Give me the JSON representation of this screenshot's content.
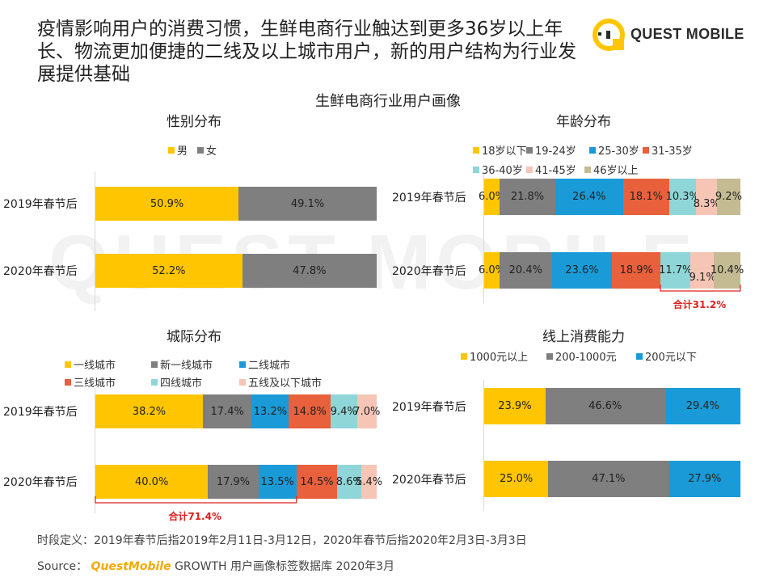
{
  "headline": "疫情影响用户的消费习惯，生鲜电商行业触达到更多36岁以上年长、物流更加便捷的二线及以上城市用户，新的用户结构为行业发展提供基础",
  "brand": "QUEST MOBILE",
  "main_title": "生鲜电商行业用户画像",
  "watermark": "QUEST MOBILE",
  "colors": {
    "yellow": "#FFC600",
    "grey": "#7F7F7F",
    "blue": "#1A9BD7",
    "orange": "#E8603C",
    "teal": "#8FD6D8",
    "pink": "#F7C5B5",
    "khaki": "#C4BB92",
    "red": "#E02020"
  },
  "chart_data": [
    {
      "type": "bar",
      "stacked": true,
      "orientation": "horizontal",
      "title": "性别分布",
      "categories": [
        "2019年春节后",
        "2020年春节后"
      ],
      "series": [
        {
          "name": "男",
          "values": [
            50.9,
            52.2
          ],
          "labels": [
            "50.9%",
            "52.2%"
          ]
        },
        {
          "name": "女",
          "values": [
            49.1,
            47.8
          ],
          "labels": [
            "49.1%",
            "47.8%"
          ]
        }
      ]
    },
    {
      "type": "bar",
      "stacked": true,
      "orientation": "horizontal",
      "title": "年龄分布",
      "categories": [
        "2019年春节后",
        "2020年春节后"
      ],
      "series": [
        {
          "name": "18岁以下",
          "values": [
            6.0,
            6.0
          ],
          "labels": [
            "6.0%",
            "6.0%"
          ]
        },
        {
          "name": "19-24岁",
          "values": [
            21.8,
            20.4
          ],
          "labels": [
            "21.8%",
            "20.4%"
          ]
        },
        {
          "name": "25-30岁",
          "values": [
            26.4,
            23.6
          ],
          "labels": [
            "26.4%",
            "23.6%"
          ]
        },
        {
          "name": "31-35岁",
          "values": [
            18.1,
            18.9
          ],
          "labels": [
            "18.1%",
            "18.9%"
          ]
        },
        {
          "name": "36-40岁",
          "values": [
            10.3,
            11.7
          ],
          "labels": [
            "10.3%",
            "11.7%"
          ]
        },
        {
          "name": "41-45岁",
          "values": [
            8.3,
            9.1
          ],
          "labels": [
            "8.3%",
            "9.1%"
          ]
        },
        {
          "name": "46岁以上",
          "values": [
            9.2,
            10.4
          ],
          "labels": [
            "9.2%",
            "10.4%"
          ]
        }
      ],
      "annotation": "合计31.2%"
    },
    {
      "type": "bar",
      "stacked": true,
      "orientation": "horizontal",
      "title": "城际分布",
      "categories": [
        "2019年春节后",
        "2020年春节后"
      ],
      "series": [
        {
          "name": "一线城市",
          "values": [
            38.2,
            40.0
          ],
          "labels": [
            "38.2%",
            "40.0%"
          ]
        },
        {
          "name": "新一线城市",
          "values": [
            17.4,
            17.9
          ],
          "labels": [
            "17.4%",
            "17.9%"
          ]
        },
        {
          "name": "二线城市",
          "values": [
            13.2,
            13.5
          ],
          "labels": [
            "13.2%",
            "13.5%"
          ]
        },
        {
          "name": "三线城市",
          "values": [
            14.8,
            14.5
          ],
          "labels": [
            "14.8%",
            "14.5%"
          ]
        },
        {
          "name": "四线城市",
          "values": [
            9.4,
            8.6
          ],
          "labels": [
            "9.4%",
            "8.6%"
          ]
        },
        {
          "name": "五线及以下城市",
          "values": [
            7.0,
            5.4
          ],
          "labels": [
            "7.0%",
            "5.4%"
          ]
        }
      ],
      "annotation": "合计71.4%"
    },
    {
      "type": "bar",
      "stacked": true,
      "orientation": "horizontal",
      "title": "线上消费能力",
      "categories": [
        "2019年春节后",
        "2020年春节后"
      ],
      "series": [
        {
          "name": "1000元以上",
          "values": [
            23.9,
            25.0
          ],
          "labels": [
            "23.9%",
            "25.0%"
          ]
        },
        {
          "name": "200-1000元",
          "values": [
            46.6,
            47.1
          ],
          "labels": [
            "46.6%",
            "47.1%"
          ]
        },
        {
          "name": "200元以下",
          "values": [
            29.4,
            27.9
          ],
          "labels": [
            "29.4%",
            "27.9%"
          ]
        }
      ]
    }
  ],
  "footer": {
    "definition": "时段定义：2019年春节后指2019年2月11日-3月12日，2020年春节后指2020年2月3日-3月3日",
    "source_prefix": "Source：",
    "source_brand": "QuestMobile",
    "source_rest": " GROWTH 用户画像标签数据库 2020年3月"
  }
}
